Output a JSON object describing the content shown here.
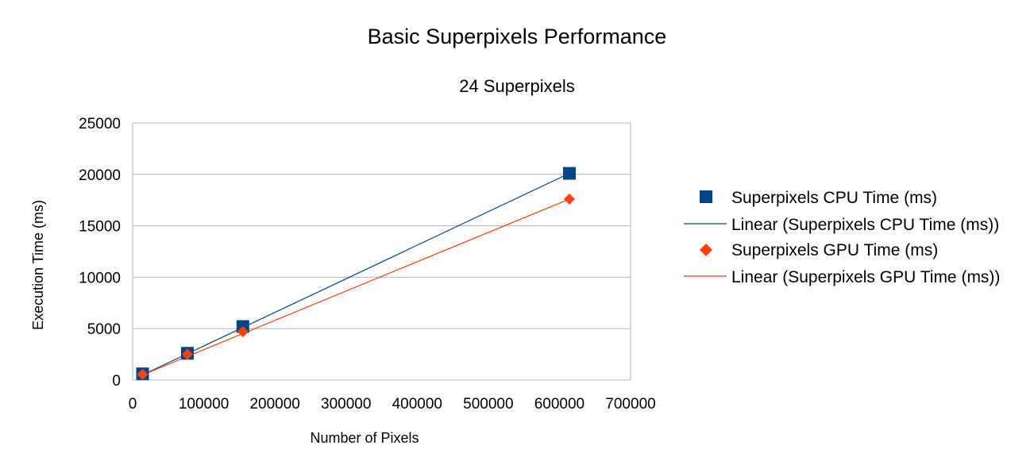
{
  "chart_data": {
    "type": "scatter",
    "title": "Basic Superpixels Performance",
    "subtitle": "24 Superpixels",
    "xlabel": "Number of Pixels",
    "ylabel": "Execution Time (ms)",
    "xlim": [
      0,
      700000
    ],
    "ylim": [
      0,
      25000
    ],
    "x_ticks": [
      0,
      100000,
      200000,
      300000,
      400000,
      500000,
      600000,
      700000
    ],
    "y_ticks": [
      0,
      5000,
      10000,
      15000,
      20000,
      25000
    ],
    "grid": true,
    "legend_position": "right",
    "series": [
      {
        "name": "Superpixels CPU Time (ms)",
        "marker": "square",
        "color": "#004586",
        "x": [
          14000,
          77000,
          155000,
          614000
        ],
        "y": [
          600,
          2600,
          5200,
          20100
        ]
      },
      {
        "name": "Superpixels GPU Time (ms)",
        "marker": "diamond",
        "color": "#ff420e",
        "x": [
          14000,
          77000,
          155000,
          614000
        ],
        "y": [
          550,
          2500,
          4700,
          17600
        ]
      }
    ],
    "trendlines": [
      {
        "name": "Linear (Superpixels CPU Time (ms))",
        "type": "linear",
        "color": "#004586",
        "x_range": [
          14000,
          614000
        ],
        "y_range": [
          500,
          20100
        ]
      },
      {
        "name": "Linear (Superpixels GPU Time (ms))",
        "type": "linear",
        "color": "#ff420e",
        "x_range": [
          14000,
          614000
        ],
        "y_range": [
          500,
          17600
        ]
      }
    ]
  }
}
